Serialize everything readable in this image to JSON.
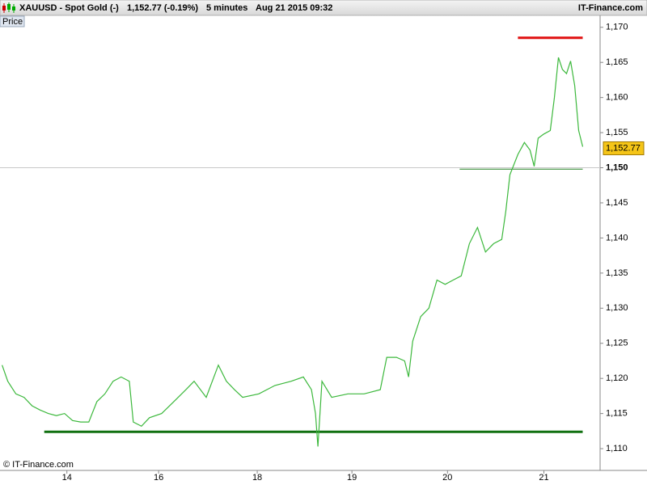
{
  "header": {
    "symbol": "XAUUSD - Spot Gold (-)",
    "quote": "1,152.77 (-0.19%)",
    "interval": "5 minutes",
    "datetime": "Aug 21 2015 09:32",
    "brand": "IT-Finance.com"
  },
  "chart_data": {
    "type": "line",
    "panel_label": "Price",
    "copyright": "© IT-Finance.com",
    "xlim": [
      -0.7,
      5.58
    ],
    "xticks": [
      {
        "value": 0,
        "label": "14"
      },
      {
        "value": 0.96,
        "label": "16"
      },
      {
        "value": 1.992,
        "label": "18"
      },
      {
        "value": 2.983,
        "label": "19"
      },
      {
        "value": 3.983,
        "label": "20"
      },
      {
        "value": 4.992,
        "label": "21"
      }
    ],
    "ylim": [
      1106.9,
      1171.7
    ],
    "yticks": [
      {
        "value": 1110,
        "label": "1,110"
      },
      {
        "value": 1115,
        "label": "1,115"
      },
      {
        "value": 1120,
        "label": "1,120"
      },
      {
        "value": 1125,
        "label": "1,125"
      },
      {
        "value": 1130,
        "label": "1,130"
      },
      {
        "value": 1135,
        "label": "1,135"
      },
      {
        "value": 1140,
        "label": "1,140"
      },
      {
        "value": 1145,
        "label": "1,145"
      },
      {
        "value": 1150,
        "label": "1,150",
        "highlight": true
      },
      {
        "value": 1155,
        "label": "1,155"
      },
      {
        "value": 1160,
        "label": "1,160"
      },
      {
        "value": 1165,
        "label": "1,165"
      },
      {
        "value": 1170,
        "label": "1,170"
      }
    ],
    "series": [
      {
        "color": "#3cb83c",
        "x": [
          -0.678,
          -0.619,
          -0.534,
          -0.449,
          -0.364,
          -0.28,
          -0.195,
          -0.11,
          -0.025,
          0.059,
          0.144,
          0.229,
          0.314,
          0.398,
          0.483,
          0.568,
          0.653,
          0.695,
          0.78,
          0.864,
          0.992,
          1.119,
          1.246,
          1.331,
          1.458,
          1.585,
          1.669,
          1.754,
          1.839,
          2.008,
          2.178,
          2.347,
          2.475,
          2.559,
          2.602,
          2.627,
          2.669,
          2.771,
          2.941,
          3.11,
          3.28,
          3.347,
          3.449,
          3.534,
          3.576,
          3.619,
          3.703,
          3.788,
          3.873,
          3.958,
          4.042,
          4.127,
          4.212,
          4.297,
          4.381,
          4.466,
          4.551,
          4.593,
          4.636,
          4.72,
          4.788,
          4.847,
          4.89,
          4.932,
          4.992,
          5.059,
          5.102,
          5.144,
          5.186,
          5.229,
          5.271,
          5.314,
          5.356,
          5.398
        ],
        "values": [
          1121.9,
          1119.6,
          1117.8,
          1117.3,
          1116.1,
          1115.5,
          1115.0,
          1114.7,
          1115.0,
          1114.0,
          1113.8,
          1113.8,
          1116.7,
          1117.8,
          1119.6,
          1120.2,
          1119.6,
          1113.8,
          1113.2,
          1114.4,
          1115.0,
          1116.7,
          1118.4,
          1119.6,
          1117.3,
          1121.9,
          1119.6,
          1118.4,
          1117.3,
          1117.8,
          1119.0,
          1119.6,
          1120.2,
          1118.4,
          1115.0,
          1110.3,
          1119.6,
          1117.3,
          1117.8,
          1117.8,
          1118.4,
          1123.0,
          1123.0,
          1122.5,
          1120.2,
          1125.3,
          1128.8,
          1130.0,
          1134.0,
          1133.4,
          1134.0,
          1134.6,
          1139.2,
          1141.5,
          1138.0,
          1139.2,
          1139.8,
          1143.8,
          1149.0,
          1151.9,
          1153.6,
          1152.5,
          1150.2,
          1154.2,
          1154.8,
          1155.3,
          1160.0,
          1165.7,
          1164.0,
          1163.4,
          1165.2,
          1161.7,
          1155.3,
          1153.0
        ]
      }
    ],
    "levels": [
      {
        "value": 1168.5,
        "x": [
          4.72,
          5.398
        ],
        "color": "#e01010",
        "width": 3
      },
      {
        "value": 1112.4,
        "x": [
          -0.237,
          5.398
        ],
        "color": "#107010",
        "width": 3
      },
      {
        "value": 1149.8,
        "x": [
          4.11,
          5.398
        ],
        "color": "#208020",
        "width": 1
      }
    ],
    "price_tag": {
      "value": 1152.77,
      "label": "1,152.77"
    }
  }
}
